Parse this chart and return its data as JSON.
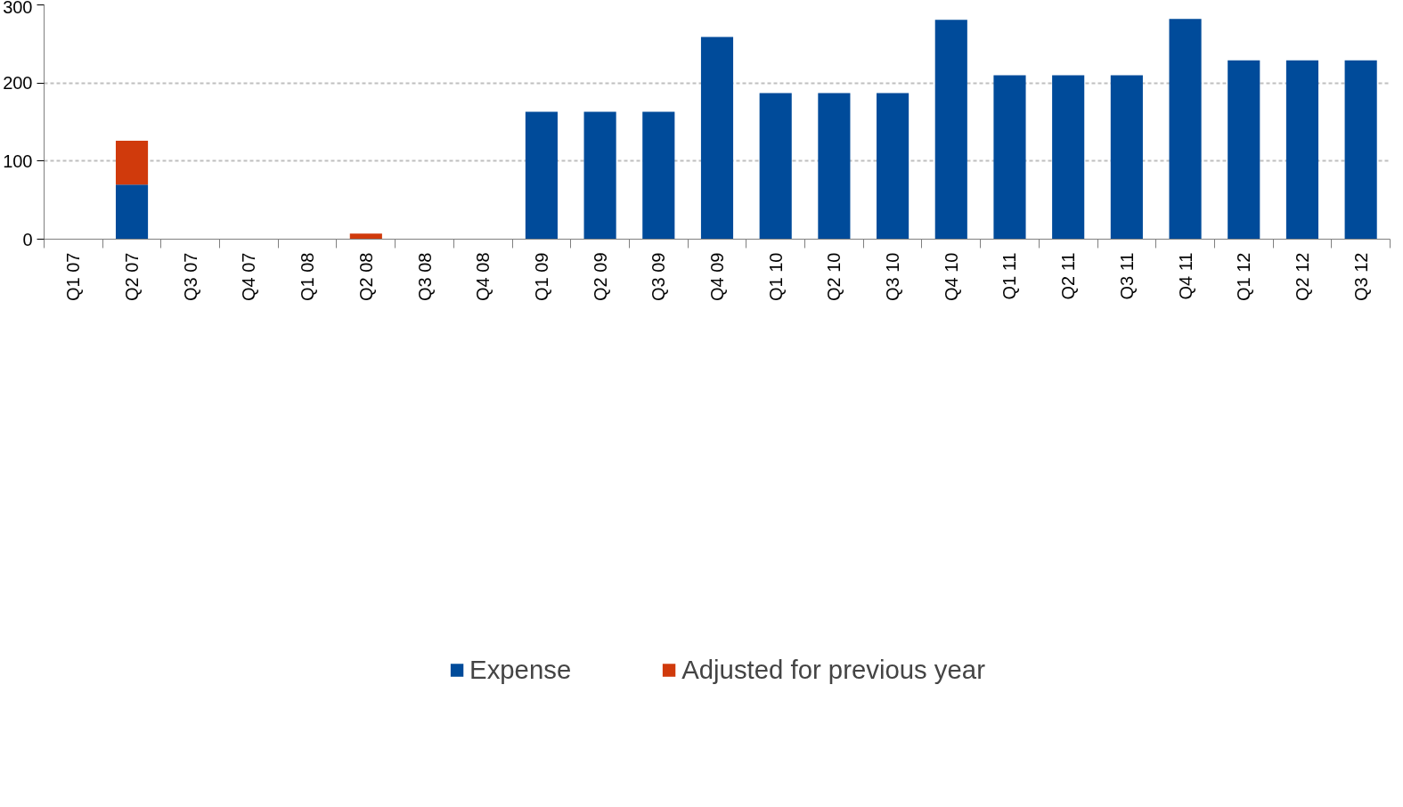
{
  "chart_data": {
    "type": "bar",
    "stacked": true,
    "categories": [
      "Q1 07",
      "Q2 07",
      "Q3 07",
      "Q4 07",
      "Q1 08",
      "Q2 08",
      "Q3 08",
      "Q4 08",
      "Q1 09",
      "Q2 09",
      "Q3 09",
      "Q4 09",
      "Q1 10",
      "Q2 10",
      "Q3 10",
      "Q4 10",
      "Q1 11",
      "Q2 11",
      "Q3 11",
      "Q4 11",
      "Q1 12",
      "Q2 12",
      "Q3 12"
    ],
    "series": [
      {
        "name": "Expense",
        "color": "#004b9a",
        "values": [
          null,
          70,
          null,
          null,
          null,
          null,
          null,
          null,
          163,
          163,
          163,
          259,
          187,
          187,
          187,
          281,
          210,
          210,
          210,
          282,
          229,
          229,
          229
        ]
      },
      {
        "name": "Adjusted for previous year",
        "color": "#d03a0c",
        "values": [
          null,
          56,
          null,
          null,
          null,
          7,
          null,
          null,
          null,
          null,
          null,
          null,
          null,
          null,
          null,
          null,
          null,
          null,
          null,
          null,
          null,
          null,
          null
        ]
      }
    ],
    "ylim": [
      0,
      300
    ],
    "yticks": [
      0,
      100,
      200,
      300
    ],
    "grid": "y",
    "legend": "bottom"
  }
}
